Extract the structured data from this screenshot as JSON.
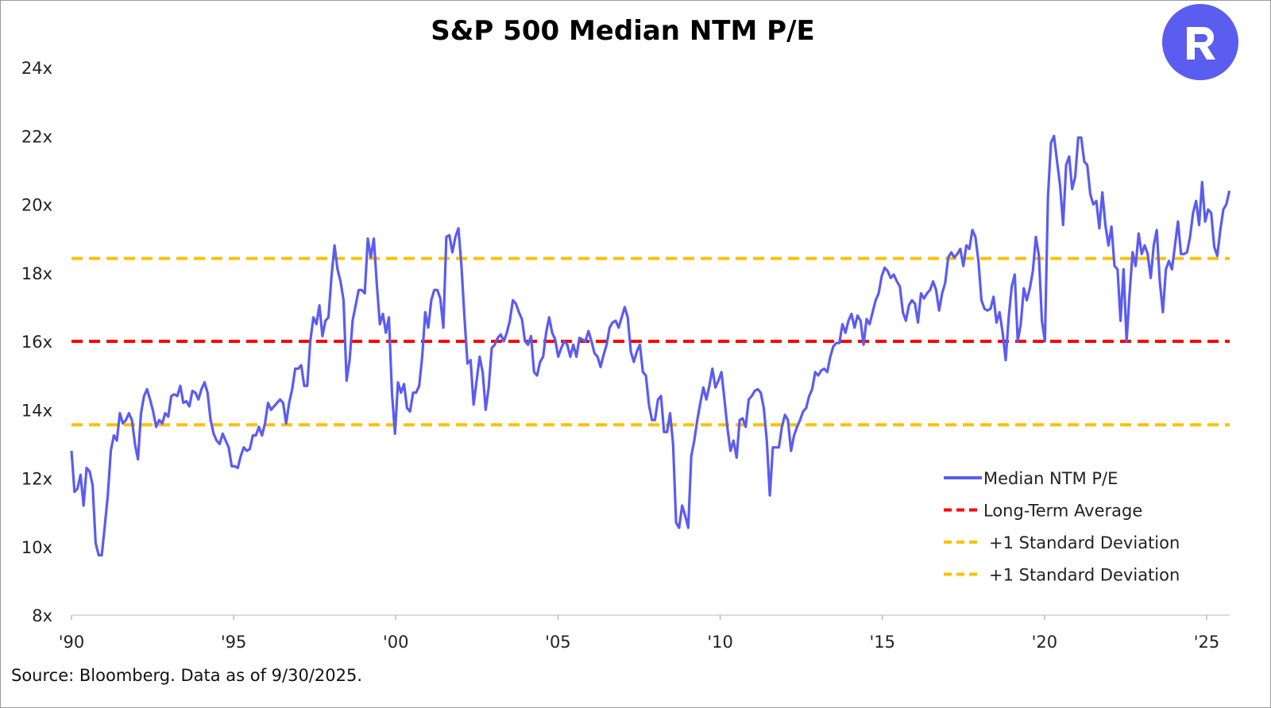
{
  "chart_data": {
    "type": "line",
    "title": "S&P 500 Median NTM P/E",
    "xlabel": "",
    "ylabel": "",
    "ylim": [
      8,
      24
    ],
    "xlim": [
      1990,
      2025.75
    ],
    "y_ticks": [
      8,
      10,
      12,
      14,
      16,
      18,
      20,
      22,
      24
    ],
    "y_tick_labels": [
      "8x",
      "10x",
      "12x",
      "14x",
      "16x",
      "18x",
      "20x",
      "22x",
      "24x"
    ],
    "x_ticks": [
      1990,
      1995,
      2000,
      2005,
      2010,
      2015,
      2020,
      2025
    ],
    "x_tick_labels": [
      "'90",
      "'95",
      "'00",
      "'05",
      "'10",
      "'15",
      "'20",
      "'25"
    ],
    "grid": false,
    "legend_position": "bottom-right",
    "series": [
      {
        "name": "Median NTM P/E",
        "color": "#5B5CF0",
        "style": "solid",
        "start_year": 1990.0,
        "end_year": 2025.7,
        "values": [
          12.8,
          11.6,
          11.7,
          12.1,
          11.2,
          12.3,
          12.2,
          11.8,
          10.1,
          9.75,
          9.75,
          10.6,
          11.5,
          12.8,
          13.25,
          13.1,
          13.9,
          13.6,
          13.7,
          13.9,
          13.7,
          13.0,
          12.55,
          13.9,
          14.4,
          14.6,
          14.3,
          13.95,
          13.5,
          13.7,
          13.6,
          13.9,
          13.8,
          14.4,
          14.45,
          14.4,
          14.7,
          14.2,
          14.25,
          14.1,
          14.55,
          14.5,
          14.3,
          14.6,
          14.8,
          14.5,
          13.7,
          13.3,
          13.1,
          13.0,
          13.3,
          13.1,
          12.9,
          12.35,
          12.35,
          12.3,
          12.65,
          12.9,
          12.8,
          12.85,
          13.25,
          13.25,
          13.5,
          13.25,
          13.6,
          14.2,
          14.0,
          14.1,
          14.2,
          14.3,
          14.2,
          13.6,
          14.2,
          14.6,
          15.2,
          15.2,
          15.3,
          14.7,
          14.7,
          16.0,
          16.7,
          16.5,
          17.05,
          16.15,
          16.6,
          16.7,
          17.9,
          18.8,
          18.1,
          17.75,
          17.2,
          14.85,
          15.45,
          16.6,
          17.05,
          17.5,
          17.5,
          17.4,
          19.0,
          18.45,
          19.0,
          17.65,
          16.5,
          16.8,
          16.25,
          16.7,
          14.5,
          13.3,
          14.8,
          14.5,
          14.75,
          14.05,
          13.95,
          14.5,
          14.5,
          14.7,
          15.55,
          16.85,
          16.4,
          17.2,
          17.5,
          17.5,
          17.25,
          16.4,
          19.05,
          19.1,
          18.6,
          19.05,
          19.3,
          18.2,
          16.7,
          15.35,
          15.45,
          14.15,
          14.85,
          15.55,
          15.1,
          14.0,
          14.65,
          15.8,
          15.9,
          16.1,
          16.2,
          16.0,
          16.25,
          16.6,
          17.2,
          17.1,
          16.85,
          16.65,
          16.0,
          15.9,
          16.15,
          15.1,
          15.0,
          15.4,
          15.55,
          16.25,
          16.7,
          16.25,
          16.05,
          15.55,
          15.8,
          16.0,
          15.9,
          15.55,
          15.9,
          15.55,
          16.1,
          16.05,
          16.0,
          16.3,
          16.0,
          15.65,
          15.55,
          15.25,
          15.6,
          15.9,
          16.4,
          16.55,
          16.6,
          16.4,
          16.7,
          17.0,
          16.7,
          15.7,
          15.4,
          15.7,
          15.9,
          15.1,
          15.0,
          14.15,
          13.7,
          13.7,
          14.3,
          14.4,
          13.35,
          13.35,
          13.9,
          13.0,
          10.7,
          10.55,
          11.2,
          10.9,
          10.55,
          12.65,
          13.1,
          13.7,
          14.2,
          14.65,
          14.3,
          14.7,
          15.2,
          14.65,
          14.85,
          15.1,
          14.3,
          13.45,
          12.8,
          13.1,
          12.6,
          13.7,
          13.75,
          13.5,
          14.3,
          14.4,
          14.55,
          14.6,
          14.5,
          14.05,
          13.1,
          11.5,
          12.9,
          12.9,
          12.9,
          13.5,
          13.85,
          13.7,
          12.8,
          13.25,
          13.5,
          13.7,
          13.95,
          14.05,
          14.4,
          14.6,
          15.1,
          15.0,
          15.15,
          15.2,
          15.1,
          15.55,
          15.85,
          15.95,
          15.95,
          16.5,
          16.25,
          16.6,
          16.8,
          16.4,
          16.75,
          16.6,
          15.9,
          16.65,
          16.5,
          16.85,
          17.2,
          17.4,
          17.9,
          18.15,
          18.05,
          17.85,
          17.95,
          17.75,
          17.6,
          16.85,
          16.6,
          17.05,
          17.2,
          17.1,
          16.55,
          17.4,
          17.25,
          17.4,
          17.5,
          17.75,
          17.5,
          16.9,
          17.4,
          17.7,
          18.45,
          18.6,
          18.45,
          18.55,
          18.7,
          18.2,
          18.8,
          18.7,
          19.25,
          19.05,
          18.35,
          17.2,
          16.95,
          16.9,
          16.95,
          17.3,
          16.55,
          16.85,
          16.25,
          15.45,
          16.7,
          17.6,
          17.95,
          16.0,
          16.5,
          17.55,
          17.2,
          17.55,
          18.05,
          19.05,
          18.5,
          16.6,
          16.0,
          20.2,
          21.8,
          22.0,
          21.25,
          20.55,
          19.4,
          21.15,
          21.4,
          20.45,
          20.8,
          21.95,
          21.95,
          21.25,
          21.15,
          20.3,
          20.0,
          20.1,
          19.3,
          20.35,
          19.4,
          18.8,
          19.35,
          18.2,
          18.1,
          16.6,
          18.1,
          16.0,
          17.4,
          18.6,
          18.2,
          19.15,
          18.55,
          18.8,
          18.55,
          17.85,
          18.8,
          19.25,
          17.75,
          16.85,
          18.1,
          18.35,
          18.1,
          18.8,
          19.5,
          18.55,
          18.55,
          18.6,
          19.05,
          19.75,
          20.1,
          19.4,
          20.65,
          19.5,
          19.85,
          19.75,
          18.75,
          18.5,
          19.25,
          19.85,
          20.0,
          20.4
        ]
      },
      {
        "name": "Long-Term Average",
        "color": "#FF0000",
        "style": "dashed",
        "value": 16.0
      },
      {
        "name": "+1 Standard Deviation",
        "color": "#FFC000",
        "style": "dashed",
        "value": 18.42
      },
      {
        "name": "+1 Standard Deviation",
        "color": "#FFC000",
        "style": "dashed",
        "value": 13.56
      }
    ],
    "source": "Source: Bloomberg. Data as of 9/30/2025."
  },
  "logo": {
    "letter": "R",
    "color": "#5B5CF0"
  }
}
